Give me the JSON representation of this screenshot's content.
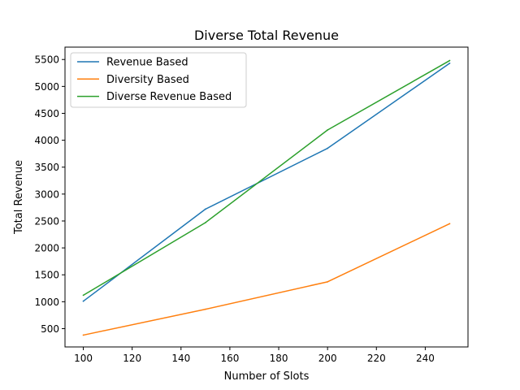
{
  "chart_data": {
    "type": "line",
    "title": "Diverse Total Revenue",
    "xlabel": "Number of Slots",
    "ylabel": "Total Revenue",
    "x": [
      100,
      150,
      200,
      250
    ],
    "xlim": [
      92.5,
      257.5
    ],
    "ylim": [
      160,
      5730
    ],
    "xticks": [
      100,
      120,
      140,
      160,
      180,
      200,
      220,
      240
    ],
    "yticks": [
      500,
      1000,
      1500,
      2000,
      2500,
      3000,
      3500,
      4000,
      4500,
      5000,
      5500
    ],
    "grid": false,
    "legend_position": "upper-left",
    "series": [
      {
        "name": "Revenue Based",
        "color": "#1f77b4",
        "values": [
          1010,
          2720,
          3850,
          5430
        ]
      },
      {
        "name": "Diversity Based",
        "color": "#ff7f0e",
        "values": [
          380,
          860,
          1370,
          2450
        ]
      },
      {
        "name": "Diverse Revenue Based",
        "color": "#2ca02c",
        "values": [
          1120,
          2470,
          4190,
          5480
        ]
      }
    ]
  }
}
